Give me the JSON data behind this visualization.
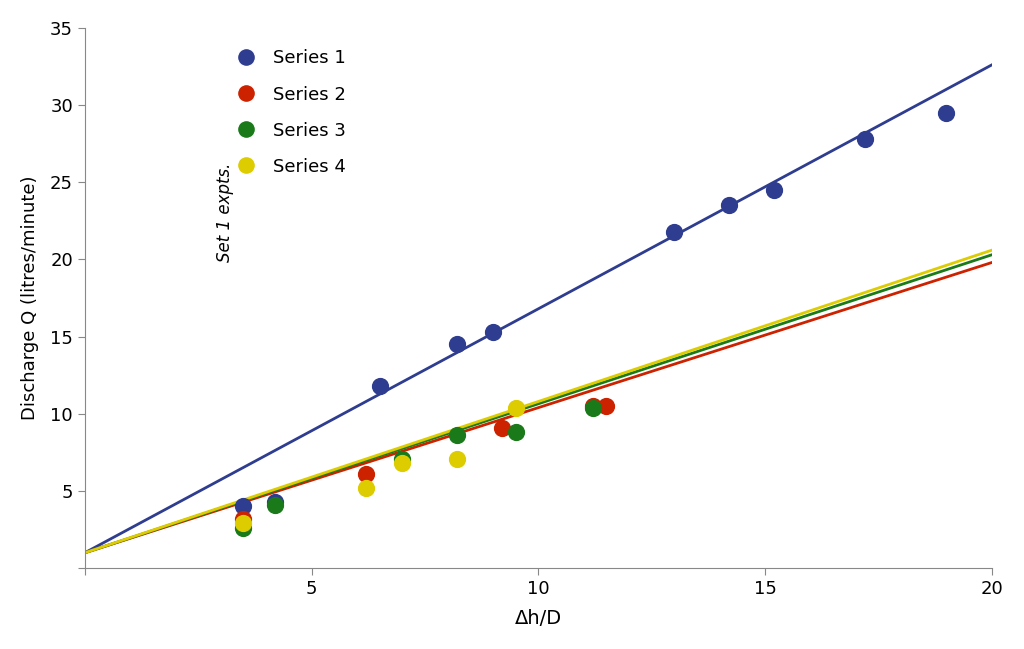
{
  "series": [
    {
      "name": "Series 1",
      "color": "#2e3d8f",
      "marker_color": "#2e3d8f",
      "x": [
        3.5,
        4.2,
        6.5,
        8.2,
        9.0,
        13.0,
        14.2,
        15.2,
        17.2,
        19.0
      ],
      "y": [
        4.0,
        4.3,
        11.8,
        14.5,
        15.3,
        21.8,
        23.5,
        24.5,
        27.8,
        29.5
      ],
      "line_slope": 1.58,
      "line_intercept": 1.0
    },
    {
      "name": "Series 2",
      "color": "#cc2200",
      "marker_color": "#cc2200",
      "x": [
        3.5,
        6.2,
        9.2,
        11.2,
        11.5
      ],
      "y": [
        3.2,
        6.1,
        9.1,
        10.5,
        10.5
      ],
      "line_slope": 0.94,
      "line_intercept": 1.0
    },
    {
      "name": "Series 3",
      "color": "#1a7a1a",
      "marker_color": "#1a7a1a",
      "x": [
        3.5,
        4.2,
        7.0,
        8.2,
        9.5,
        11.2
      ],
      "y": [
        2.6,
        4.1,
        7.1,
        8.6,
        8.8,
        10.4
      ],
      "line_slope": 0.965,
      "line_intercept": 1.0
    },
    {
      "name": "Series 4",
      "color": "#ddcc00",
      "marker_color": "#ddcc00",
      "x": [
        3.5,
        6.2,
        7.0,
        8.2,
        9.5
      ],
      "y": [
        2.9,
        5.2,
        6.8,
        7.1,
        10.4
      ],
      "line_slope": 0.98,
      "line_intercept": 1.0
    }
  ],
  "xlim": [
    0,
    20
  ],
  "ylim": [
    0,
    35
  ],
  "xticks": [
    0,
    5,
    10,
    15,
    20
  ],
  "yticks": [
    0,
    5,
    10,
    15,
    20,
    25,
    30,
    35
  ],
  "xlabel": "Δh/D",
  "ylabel": "Discharge Q (litres/minute)",
  "legend_text": "Set 1 expts.",
  "line_x_start": 0.0,
  "line_x_end": 20,
  "background_color": "#ffffff",
  "figsize": [
    10.24,
    6.49
  ],
  "dpi": 100
}
